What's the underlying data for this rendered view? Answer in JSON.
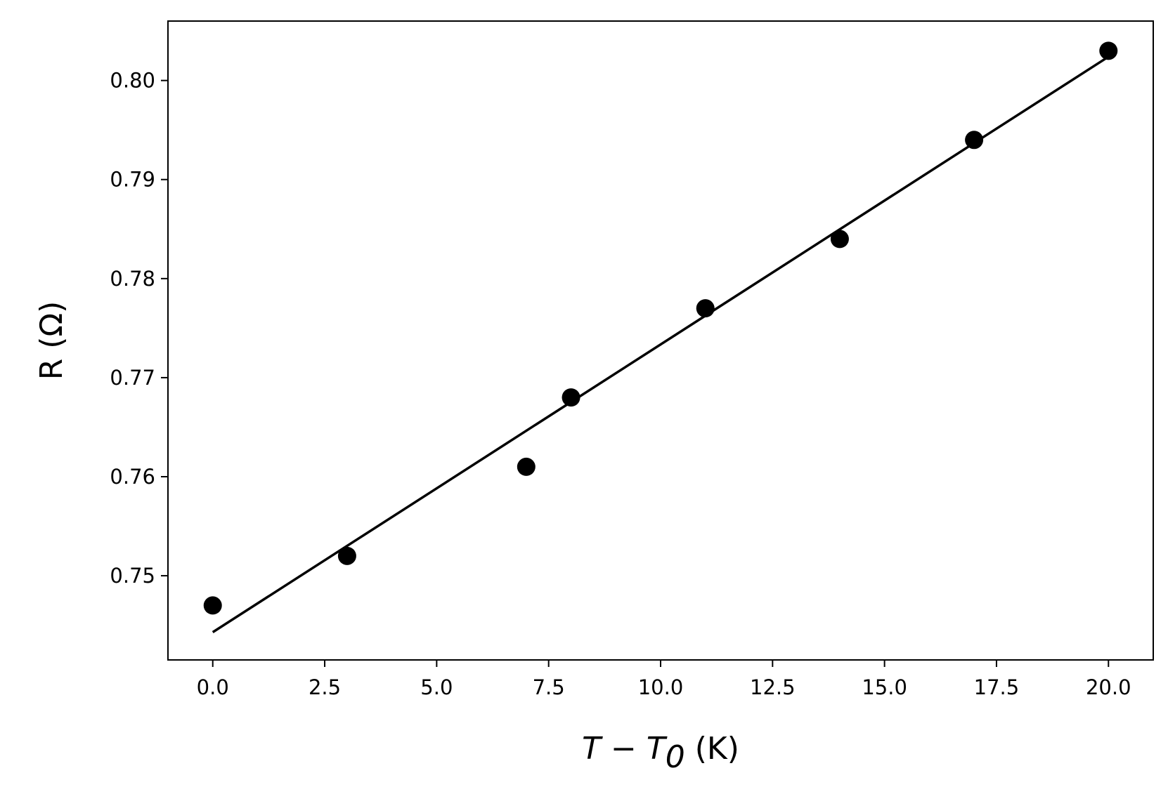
{
  "chart_data": {
    "type": "scatter",
    "title": "",
    "xlabel": {
      "main": "T − T",
      "sub": "0",
      "unit": " (K)"
    },
    "ylabel": "R (Ω)",
    "xlim": [
      -1.0,
      21.0
    ],
    "ylim": [
      0.7415,
      0.806
    ],
    "x_ticks": [
      0.0,
      2.5,
      5.0,
      7.5,
      10.0,
      12.5,
      15.0,
      17.5,
      20.0
    ],
    "x_tick_labels": [
      "0.0",
      "2.5",
      "5.0",
      "7.5",
      "10.0",
      "12.5",
      "15.0",
      "17.5",
      "20.0"
    ],
    "y_ticks": [
      0.75,
      0.76,
      0.77,
      0.78,
      0.79,
      0.8
    ],
    "y_tick_labels": [
      "0.75",
      "0.76",
      "0.77",
      "0.78",
      "0.79",
      "0.80"
    ],
    "grid": false,
    "points": {
      "x": [
        0,
        3,
        7,
        8,
        11,
        14,
        17,
        20
      ],
      "y": [
        0.747,
        0.752,
        0.761,
        0.768,
        0.777,
        0.784,
        0.794,
        0.803
      ]
    },
    "fit_line": {
      "x": [
        0,
        20
      ],
      "y": [
        0.7443,
        0.8024
      ]
    },
    "colors": {
      "points": "#000000",
      "line": "#000000",
      "axes": "#000000"
    }
  }
}
